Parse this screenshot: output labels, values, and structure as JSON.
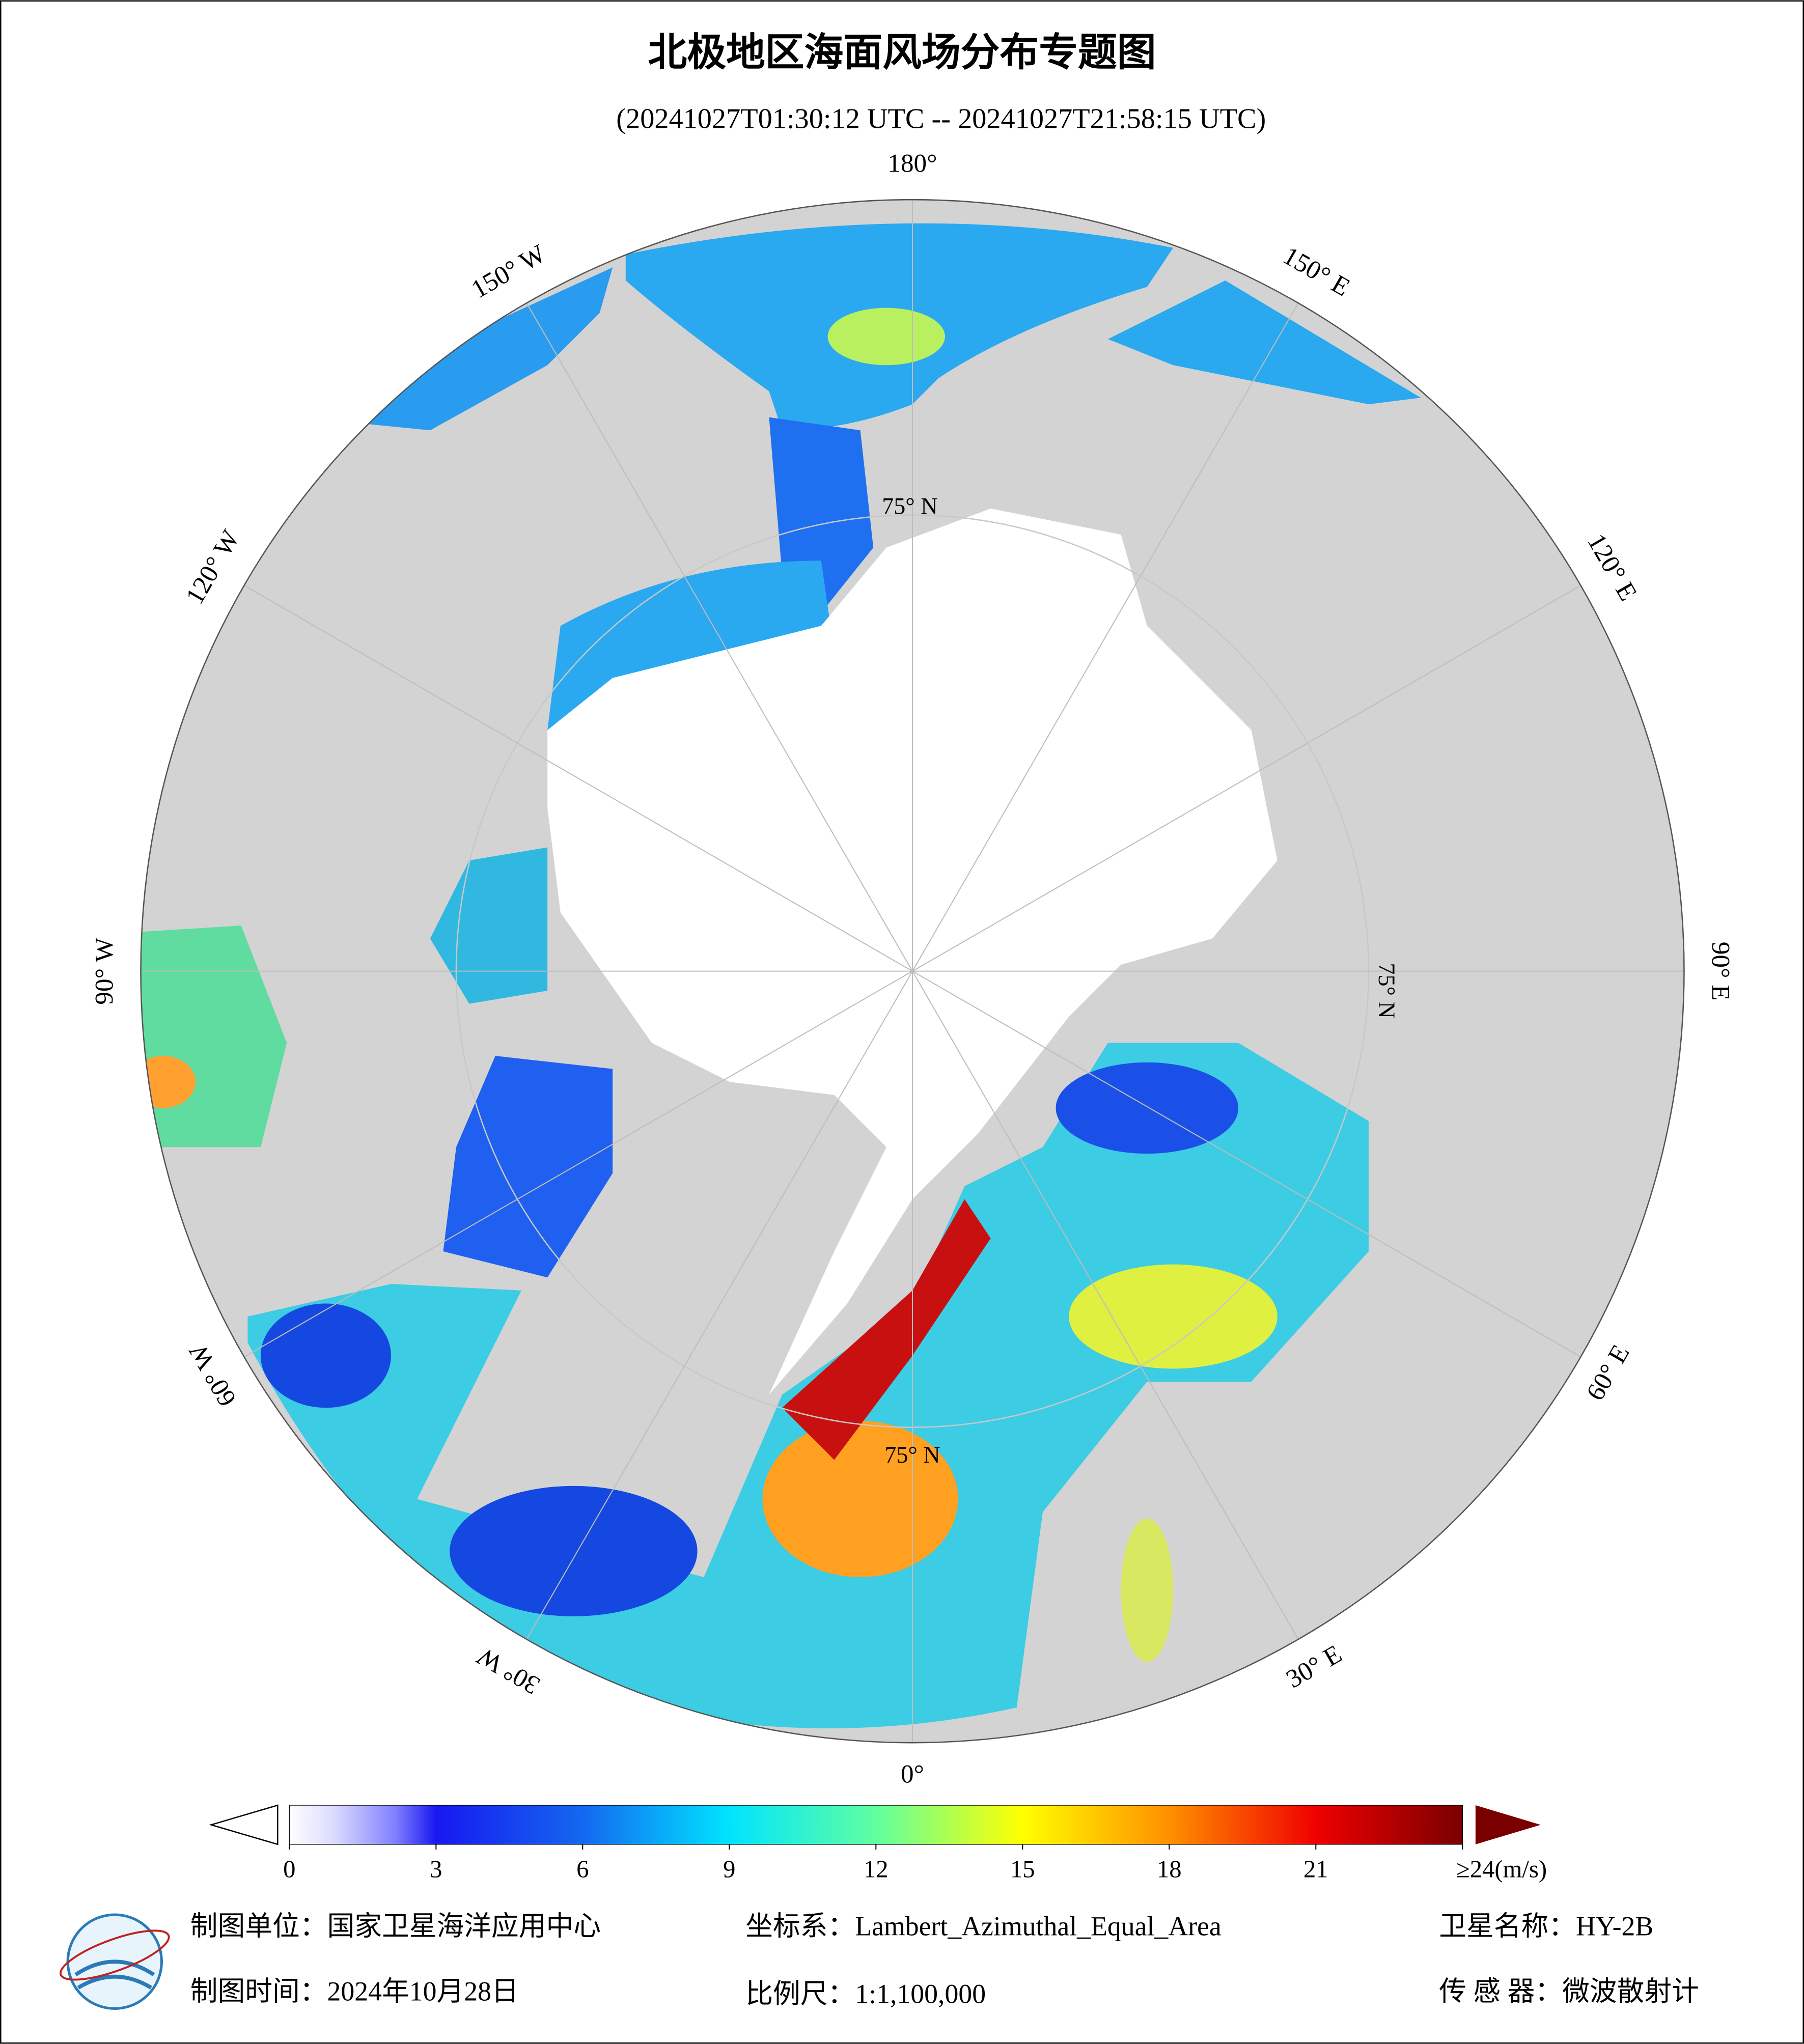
{
  "title": "北极地区海面风场分布专题图",
  "subtitle": "(20241027T01:30:12 UTC -- 20241027T21:58:15 UTC)",
  "longitude_labels": [
    "180°",
    "150° E",
    "120° E",
    "90° E",
    "60° E",
    "30° E",
    "0°",
    "30° W",
    "60° W",
    "90° W",
    "120° W",
    "150° W"
  ],
  "latitude_label": "75° N",
  "colorbar": {
    "ticks": [
      0,
      3,
      6,
      9,
      12,
      15,
      18,
      21,
      {
        "value": 24,
        "label": "≥24(m/s)"
      }
    ]
  },
  "footer": {
    "unit": "制图单位：国家卫星海洋应用中心",
    "crs": "坐标系：Lambert_Azimuthal_Equal_Area",
    "satellite": "卫星名称：HY-2B",
    "date": "制图时间：2024年10月28日",
    "scale": "比例尺：1:1,100,000",
    "sensor": "传 感 器：微波散射计"
  }
}
